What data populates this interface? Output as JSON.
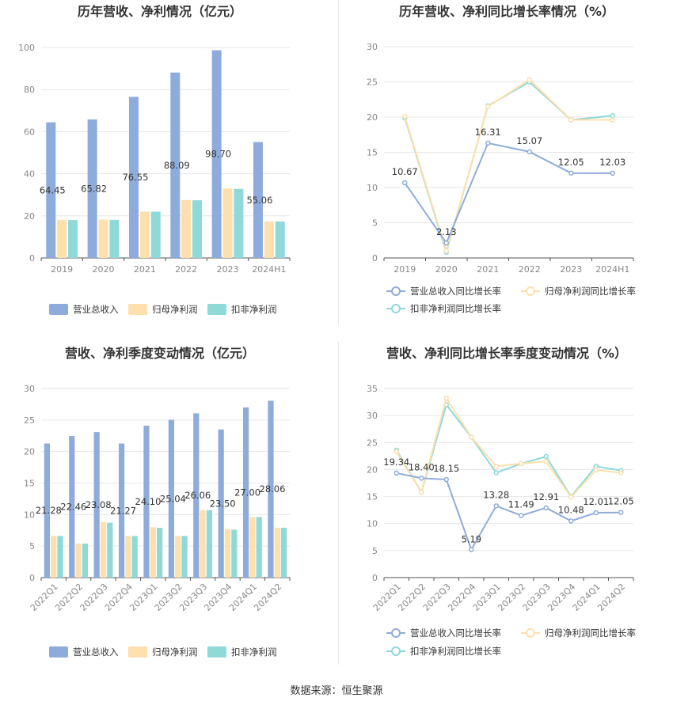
{
  "colors": {
    "revenue": "#8eacdb",
    "parent_profit": "#fde0ad",
    "deducted_profit": "#8fd9d9",
    "revenue_line": "#8eacdb",
    "parent_line": "#fde0ad",
    "deducted_line": "#8fd9d9",
    "grid": "#e6e6e6",
    "axis": "#555555"
  },
  "source_text": "数据来源：恒生聚源",
  "chart_data": [
    {
      "id": "annual_amounts",
      "type": "bar",
      "title": "历年营收、净利情况（亿元）",
      "categories": [
        "2019",
        "2020",
        "2021",
        "2022",
        "2023",
        "2024H1"
      ],
      "ylim": [
        0,
        100
      ],
      "yticks": [
        0,
        20,
        40,
        60,
        80,
        100
      ],
      "grid": true,
      "legend_position": "bottom",
      "series": [
        {
          "name": "营业总收入",
          "values": [
            64.45,
            65.82,
            76.55,
            88.09,
            98.7,
            55.06
          ],
          "labels": [
            "64.45",
            "65.82",
            "76.55",
            "88.09",
            "98.70",
            "55.06"
          ]
        },
        {
          "name": "归母净利润",
          "values": [
            18.1,
            18.2,
            22.0,
            27.5,
            33.0,
            17.4
          ]
        },
        {
          "name": "扣非净利润",
          "values": [
            18.0,
            18.1,
            22.0,
            27.4,
            32.8,
            17.3
          ]
        }
      ]
    },
    {
      "id": "annual_growth",
      "type": "line",
      "title": "历年营收、净利同比增长率情况（%）",
      "categories": [
        "2019",
        "2020",
        "2021",
        "2022",
        "2023",
        "2024H1"
      ],
      "ylim": [
        0,
        30
      ],
      "yticks": [
        0,
        5,
        10,
        15,
        20,
        25,
        30
      ],
      "grid": true,
      "legend_position": "bottom",
      "series": [
        {
          "name": "营业总收入同比增长率",
          "values": [
            10.67,
            2.13,
            16.31,
            15.07,
            12.05,
            12.03
          ],
          "labels": [
            "10.67",
            "2.13",
            "16.31",
            "15.07",
            "12.05",
            "12.03"
          ]
        },
        {
          "name": "归母净利润同比增长率",
          "values": [
            20.1,
            1.0,
            21.5,
            25.3,
            19.6,
            19.6
          ]
        },
        {
          "name": "扣非净利润同比增长率",
          "values": [
            19.9,
            0.8,
            21.6,
            25.0,
            19.6,
            20.2
          ]
        }
      ]
    },
    {
      "id": "quarterly_amounts",
      "type": "bar",
      "title": "营收、净利季度变动情况（亿元）",
      "categories": [
        "2022Q1",
        "2022Q2",
        "2022Q3",
        "2022Q4",
        "2023Q1",
        "2023Q2",
        "2023Q3",
        "2023Q4",
        "2024Q1",
        "2024Q2"
      ],
      "ylim": [
        0,
        30
      ],
      "yticks": [
        0,
        5,
        10,
        15,
        20,
        25,
        30
      ],
      "grid": true,
      "legend_position": "bottom",
      "series": [
        {
          "name": "营业总收入",
          "values": [
            21.28,
            22.46,
            23.08,
            21.27,
            24.1,
            25.04,
            26.06,
            23.5,
            27.0,
            28.06
          ],
          "labels": [
            "21.28",
            "22.46",
            "23.08",
            "21.27",
            "24.10",
            "25.04",
            "26.06",
            "23.50",
            "27.00",
            "28.06"
          ]
        },
        {
          "name": "归母净利润",
          "values": [
            6.6,
            5.4,
            8.8,
            6.6,
            8.0,
            6.6,
            10.7,
            7.7,
            9.6,
            7.9
          ]
        },
        {
          "name": "扣非净利润",
          "values": [
            6.6,
            5.4,
            8.7,
            6.6,
            7.9,
            6.6,
            10.7,
            7.6,
            9.6,
            7.9
          ]
        }
      ]
    },
    {
      "id": "quarterly_growth",
      "type": "line",
      "title": "营收、净利同比增长率季度变动情况（%）",
      "categories": [
        "2022Q1",
        "2022Q2",
        "2022Q3",
        "2022Q4",
        "2023Q1",
        "2023Q2",
        "2023Q3",
        "2023Q4",
        "2024Q1",
        "2024Q2"
      ],
      "ylim": [
        0,
        35
      ],
      "yticks": [
        0,
        5,
        10,
        15,
        20,
        25,
        30,
        35
      ],
      "grid": true,
      "legend_position": "bottom",
      "series": [
        {
          "name": "营业总收入同比增长率",
          "values": [
            19.34,
            18.4,
            18.15,
            5.19,
            13.28,
            11.49,
            12.91,
            10.48,
            12.01,
            12.05
          ],
          "labels": [
            "19.34",
            "18.40",
            "18.15",
            "5.19",
            "13.28",
            "11.49",
            "12.91",
            "10.48",
            "12.01",
            "12.05"
          ]
        },
        {
          "name": "归母净利润同比增长率",
          "values": [
            23.3,
            15.8,
            33.2,
            26.0,
            20.6,
            21.1,
            21.5,
            14.9,
            19.9,
            19.4
          ]
        },
        {
          "name": "扣非净利润同比增长率",
          "values": [
            23.6,
            15.8,
            32.0,
            26.0,
            19.4,
            21.1,
            22.4,
            15.0,
            20.6,
            19.8
          ]
        }
      ]
    }
  ]
}
